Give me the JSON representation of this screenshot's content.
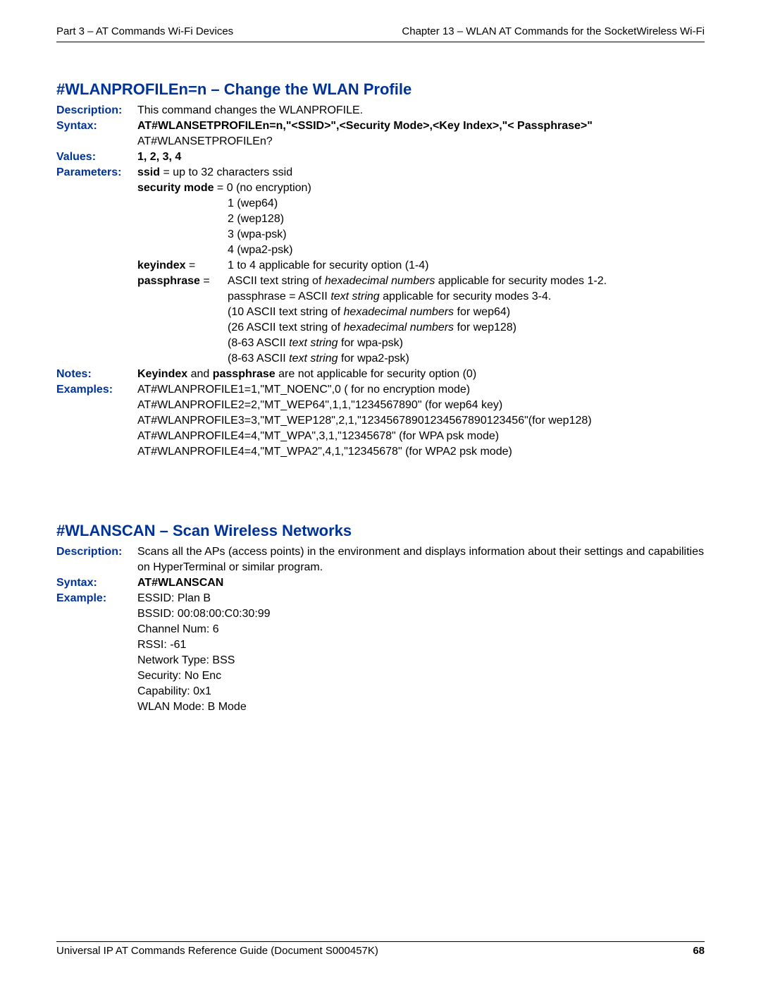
{
  "header": {
    "left": "Part 3 – AT Commands Wi-Fi Devices",
    "right": "Chapter 13 – WLAN AT Commands for the SocketWireless Wi-Fi"
  },
  "section1": {
    "title": "#WLANPROFILEn=n – Change the WLAN Profile",
    "labels": {
      "description": "Description:",
      "syntax": "Syntax:",
      "values": "Values:",
      "parameters": "Parameters:",
      "notes": "Notes:",
      "examples": "Examples:"
    },
    "description": "This command changes the WLANPROFILE.",
    "syntax_bold": "AT#WLANSETPROFILEn=n,\"<SSID>\",<Security Mode>,<Key Index>,\"< Passphrase>\"",
    "syntax_line2": "AT#WLANSETPROFILEn?",
    "values": "1, 2, 3, 4",
    "param_ssid_key": "ssid",
    "param_ssid_rest": " = up to 32 characters ssid",
    "param_sec_key": "security mode",
    "param_sec_rest": " =  0 (no encryption)",
    "sec_opts": {
      "o1": "1 (wep64)",
      "o2": "2 (wep128)",
      "o3": "3 (wpa-psk)",
      "o4": "4 (wpa2-psk)"
    },
    "keyindex_label": "keyindex",
    "keyindex_eq": " = ",
    "keyindex_val": "1 to 4 applicable for security option (1-4)",
    "passphrase_label": "passphrase",
    "passphrase_eq": " = ",
    "pass_l1_a": "ASCII text string of ",
    "pass_l1_i": "hexadecimal numbers",
    "pass_l1_b": " applicable for security modes 1-2.",
    "pass_l2_a": "passphrase = ASCII ",
    "pass_l2_i": "text string",
    "pass_l2_b": " applicable for security modes 3-4.",
    "pass_l3_a": "(10 ASCII text string of ",
    "pass_l3_i": "hexadecimal numbers",
    "pass_l3_b": " for wep64)",
    "pass_l4_a": "(26 ASCII text string of ",
    "pass_l4_i": "hexadecimal numbers",
    "pass_l4_b": " for wep128)",
    "pass_l5_a": "(8-63 ASCII ",
    "pass_l5_i": "text string",
    "pass_l5_b": " for wpa-psk)",
    "pass_l6_a": "(8-63 ASCII ",
    "pass_l6_i": "text string",
    "pass_l6_b": " for wpa2-psk)",
    "notes_b1": "Keyindex",
    "notes_mid": " and ",
    "notes_b2": "passphrase",
    "notes_rest": " are not applicable for security option (0)",
    "ex1": "AT#WLANPROFILE1=1,\"MT_NOENC\",0  ( for no encryption mode)",
    "ex2": "AT#WLANPROFILE2=2,\"MT_WEP64\",1,1,\"1234567890\"   (for wep64 key)",
    "ex3": "AT#WLANPROFILE3=3,\"MT_WEP128\",2,1,\"12345678901234567890123456\"(for wep128)",
    "ex4": "AT#WLANPROFILE4=4,\"MT_WPA\",3,1,\"12345678\" (for WPA psk mode)",
    "ex5": "AT#WLANPROFILE4=4,\"MT_WPA2\",4,1,\"12345678\" (for WPA2 psk mode)"
  },
  "section2": {
    "title": "#WLANSCAN – Scan Wireless Networks",
    "labels": {
      "description": "Description:",
      "syntax": "Syntax:",
      "example": "Example:"
    },
    "description": "Scans all the APs (access points) in the environment and displays information about their settings and capabilities on HyperTerminal or similar program.",
    "syntax": "AT#WLANSCAN",
    "ex_l1": "ESSID:  Plan B",
    "ex_l2": "BSSID:  00:08:00:C0:30:99",
    "ex_l3": "Channel Num: 6",
    "ex_l4": "RSSI:   -61",
    "ex_l5": "Network Type: BSS",
    "ex_l6": "Security: No Enc",
    "ex_l7": "Capability: 0x1",
    "ex_l8": "WLAN Mode: B Mode"
  },
  "footer": {
    "left": "Universal IP AT Commands Reference Guide (Document S000457K)",
    "page": "68"
  }
}
